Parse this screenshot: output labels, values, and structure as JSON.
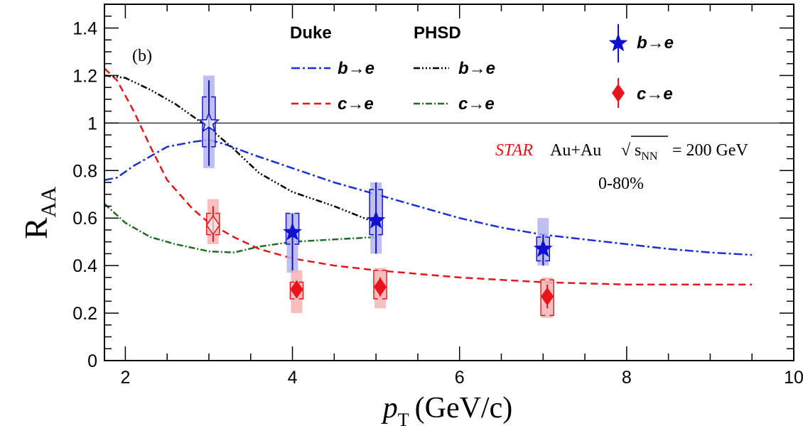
{
  "chart_data": {
    "type": "scatter",
    "panel_label": "(b)",
    "xlabel": "p",
    "xlabel_sub": "T",
    "xlabel_unit": "(GeV/c)",
    "ylabel": "R",
    "ylabel_sub": "AA",
    "xlim": [
      1.75,
      10
    ],
    "ylim": [
      0,
      1.5
    ],
    "x_ticks": [
      2,
      4,
      6,
      8,
      10
    ],
    "y_ticks": [
      0,
      0.2,
      0.4,
      0.6,
      0.8,
      1,
      1.2,
      1.4
    ],
    "y_tick_labels": [
      "0",
      "0.2",
      "0.4",
      "0.6",
      "0.8",
      "1",
      "1.2",
      "1.4"
    ],
    "reference_line": 1,
    "legend": {
      "duke_header": "Duke",
      "phsd_header": "PHSD",
      "b_to_e": "b→e",
      "c_to_e": "c→e"
    },
    "annotation": {
      "experiment": "STAR",
      "system": "Au+Au",
      "sqrt": "√",
      "s_var": "s",
      "s_sub": "NN",
      "energy": "= 200 GeV",
      "centrality": "0-80%"
    },
    "colors": {
      "b_to_e": "#1010d0",
      "c_to_e": "#e8141b",
      "duke_b": "#1a2ed8",
      "duke_c": "#e8141b",
      "phsd_b": "#000000",
      "phsd_c": "#1f6e1f",
      "b_sys_fill": "#b4b4f0",
      "c_sys_fill": "#f5b4b4"
    },
    "series": [
      {
        "name": "Duke b→e",
        "kind": "curve",
        "dash": "12,4,3,4",
        "color_key": "duke_b",
        "x": [
          1.75,
          1.9,
          2.1,
          2.3,
          2.5,
          2.8,
          3.0,
          3.2,
          3.5,
          4.0,
          4.5,
          5.0,
          5.5,
          6.0,
          6.5,
          7.0,
          7.5,
          8.0,
          8.5,
          9.0,
          9.5
        ],
        "y": [
          0.76,
          0.77,
          0.82,
          0.86,
          0.9,
          0.92,
          0.93,
          0.91,
          0.87,
          0.81,
          0.75,
          0.7,
          0.65,
          0.6,
          0.56,
          0.53,
          0.51,
          0.49,
          0.47,
          0.455,
          0.445
        ]
      },
      {
        "name": "Duke c→e",
        "kind": "curve",
        "dash": "10,6",
        "color_key": "duke_c",
        "x": [
          1.75,
          1.9,
          2.1,
          2.3,
          2.5,
          2.8,
          3.0,
          3.3,
          3.6,
          4.0,
          4.5,
          5.0,
          6.0,
          7.0,
          8.0,
          9.0,
          9.5
        ],
        "y": [
          1.23,
          1.18,
          1.05,
          0.9,
          0.76,
          0.64,
          0.58,
          0.52,
          0.47,
          0.43,
          0.4,
          0.38,
          0.35,
          0.33,
          0.32,
          0.32,
          0.32
        ]
      },
      {
        "name": "PHSD b→e",
        "kind": "curve",
        "dash": "9,3,2,3,2,3,2,3",
        "color_key": "phsd_b",
        "x": [
          1.75,
          2.0,
          2.3,
          2.6,
          3.0,
          3.3,
          3.6,
          4.0,
          4.5,
          5.0
        ],
        "y": [
          1.2,
          1.19,
          1.14,
          1.08,
          0.98,
          0.89,
          0.79,
          0.71,
          0.65,
          0.58
        ]
      },
      {
        "name": "PHSD c→e",
        "kind": "curve",
        "dash": "9,3,2,3",
        "color_key": "phsd_c",
        "x": [
          1.75,
          2.0,
          2.3,
          2.6,
          3.0,
          3.3,
          3.6,
          4.0,
          4.5,
          5.0
        ],
        "y": [
          0.66,
          0.58,
          0.52,
          0.49,
          0.46,
          0.455,
          0.48,
          0.5,
          0.51,
          0.52
        ]
      },
      {
        "name": "STAR b→e",
        "kind": "points",
        "marker": "star",
        "color_key": "b_to_e",
        "sys_fill_key": "b_sys_fill",
        "points": [
          {
            "x": 3.0,
            "y": 1.0,
            "stat_lo": 0.82,
            "stat_hi": 1.18,
            "sys_lo": 0.9,
            "sys_hi": 1.11,
            "band_lo": 0.81,
            "band_hi": 1.2,
            "open": true
          },
          {
            "x": 4.0,
            "y": 0.54,
            "stat_lo": 0.37,
            "stat_hi": 0.62,
            "sys_lo": 0.49,
            "sys_hi": 0.62,
            "band_lo": 0.37,
            "band_hi": 0.62,
            "open": false
          },
          {
            "x": 5.0,
            "y": 0.59,
            "stat_lo": 0.45,
            "stat_hi": 0.75,
            "sys_lo": 0.53,
            "sys_hi": 0.72,
            "band_lo": 0.45,
            "band_hi": 0.75,
            "open": false
          },
          {
            "x": 7.0,
            "y": 0.47,
            "stat_lo": 0.4,
            "stat_hi": 0.53,
            "sys_lo": 0.42,
            "sys_hi": 0.52,
            "band_lo": 0.4,
            "band_hi": 0.6,
            "open": false
          }
        ]
      },
      {
        "name": "STAR c→e",
        "kind": "points",
        "marker": "diamond",
        "color_key": "c_to_e",
        "sys_fill_key": "c_sys_fill",
        "points": [
          {
            "x": 3.05,
            "y": 0.57,
            "stat_lo": 0.5,
            "stat_hi": 0.65,
            "sys_lo": 0.53,
            "sys_hi": 0.62,
            "band_lo": 0.49,
            "band_hi": 0.68,
            "open": true
          },
          {
            "x": 4.05,
            "y": 0.3,
            "stat_lo": 0.27,
            "stat_hi": 0.33,
            "sys_lo": 0.26,
            "sys_hi": 0.33,
            "band_lo": 0.2,
            "band_hi": 0.38,
            "open": false
          },
          {
            "x": 5.05,
            "y": 0.31,
            "stat_lo": 0.27,
            "stat_hi": 0.35,
            "sys_lo": 0.26,
            "sys_hi": 0.38,
            "band_lo": 0.22,
            "band_hi": 0.39,
            "open": false
          },
          {
            "x": 7.05,
            "y": 0.27,
            "stat_lo": 0.22,
            "stat_hi": 0.32,
            "sys_lo": 0.19,
            "sys_hi": 0.34,
            "band_lo": 0.18,
            "band_hi": 0.35,
            "open": false
          }
        ]
      }
    ]
  }
}
